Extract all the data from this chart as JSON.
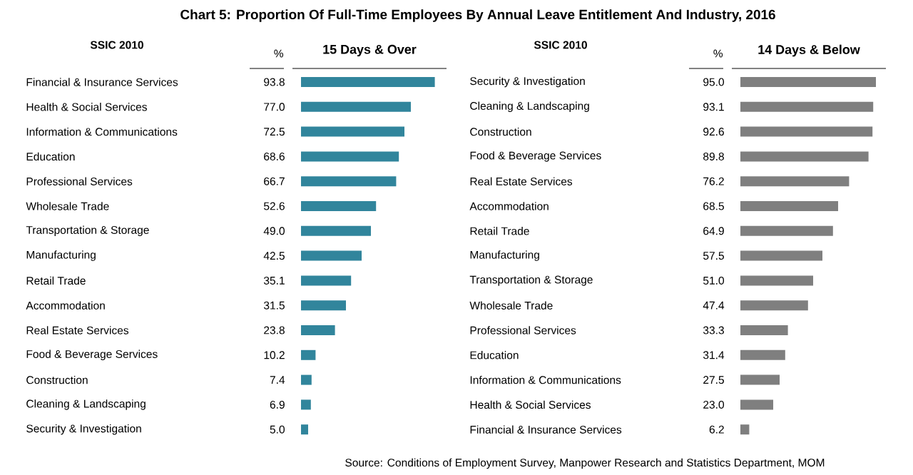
{
  "chart_data": [
    {
      "type": "bar",
      "orientation": "horizontal",
      "title": "Chart 5: Proportion Of Full-Time Employees By Annual Leave Entitlement And Industry, 2016",
      "subtitle": "15 Days & Over",
      "ylabel": "SSIC 2010",
      "xlabel": "%",
      "categories": [
        "Financial & Insurance Services",
        "Health & Social Services",
        "Information & Communications",
        "Education",
        "Professional Services",
        "Wholesale Trade",
        "Transportation & Storage",
        "Manufacturing",
        "Retail Trade",
        "Accommodation",
        "Real Estate Services",
        "Food & Beverage Services",
        "Construction",
        "Cleaning & Landscaping",
        "Security & Investigation"
      ],
      "values": [
        93.8,
        77.0,
        72.5,
        68.6,
        66.7,
        52.6,
        49.0,
        42.5,
        35.1,
        31.5,
        23.8,
        10.2,
        7.4,
        6.9,
        5.0
      ],
      "value_labels": [
        "93.8",
        "77.0",
        "72.5",
        "68.6",
        "66.7",
        "52.6",
        "49.0",
        "42.5",
        "35.1",
        "31.5",
        "23.8",
        "10.2",
        "7.4",
        "6.9",
        "5.0"
      ],
      "color": "#31859c",
      "tick_labels": "y"
    },
    {
      "type": "bar",
      "orientation": "horizontal",
      "subtitle": "14 Days & Below",
      "ylabel": "SSIC 2010",
      "xlabel": "%",
      "categories": [
        "Security & Investigation",
        "Cleaning & Landscaping",
        "Construction",
        "Food & Beverage Services",
        "Real Estate Services",
        "Accommodation",
        "Retail Trade",
        "Manufacturing",
        "Transportation & Storage",
        "Wholesale Trade",
        "Professional Services",
        "Education",
        "Information & Communications",
        "Health & Social Services",
        "Financial & Insurance Services"
      ],
      "values": [
        95.0,
        93.1,
        92.6,
        89.8,
        76.2,
        68.5,
        64.9,
        57.5,
        51.0,
        47.4,
        33.3,
        31.4,
        27.5,
        23.0,
        6.2
      ],
      "value_labels": [
        "95.0",
        "93.1",
        "92.6",
        "89.8",
        "76.2",
        "68.5",
        "64.9",
        "57.5",
        "51.0",
        "47.4",
        "33.3",
        "31.4",
        "27.5",
        "23.0",
        "6.2"
      ],
      "color": "#7f7f7f",
      "tick_labels": "y",
      "annotations": [
        "Source: Conditions of Employment Survey, Manpower Research and Statistics Department, MOM"
      ]
    }
  ]
}
